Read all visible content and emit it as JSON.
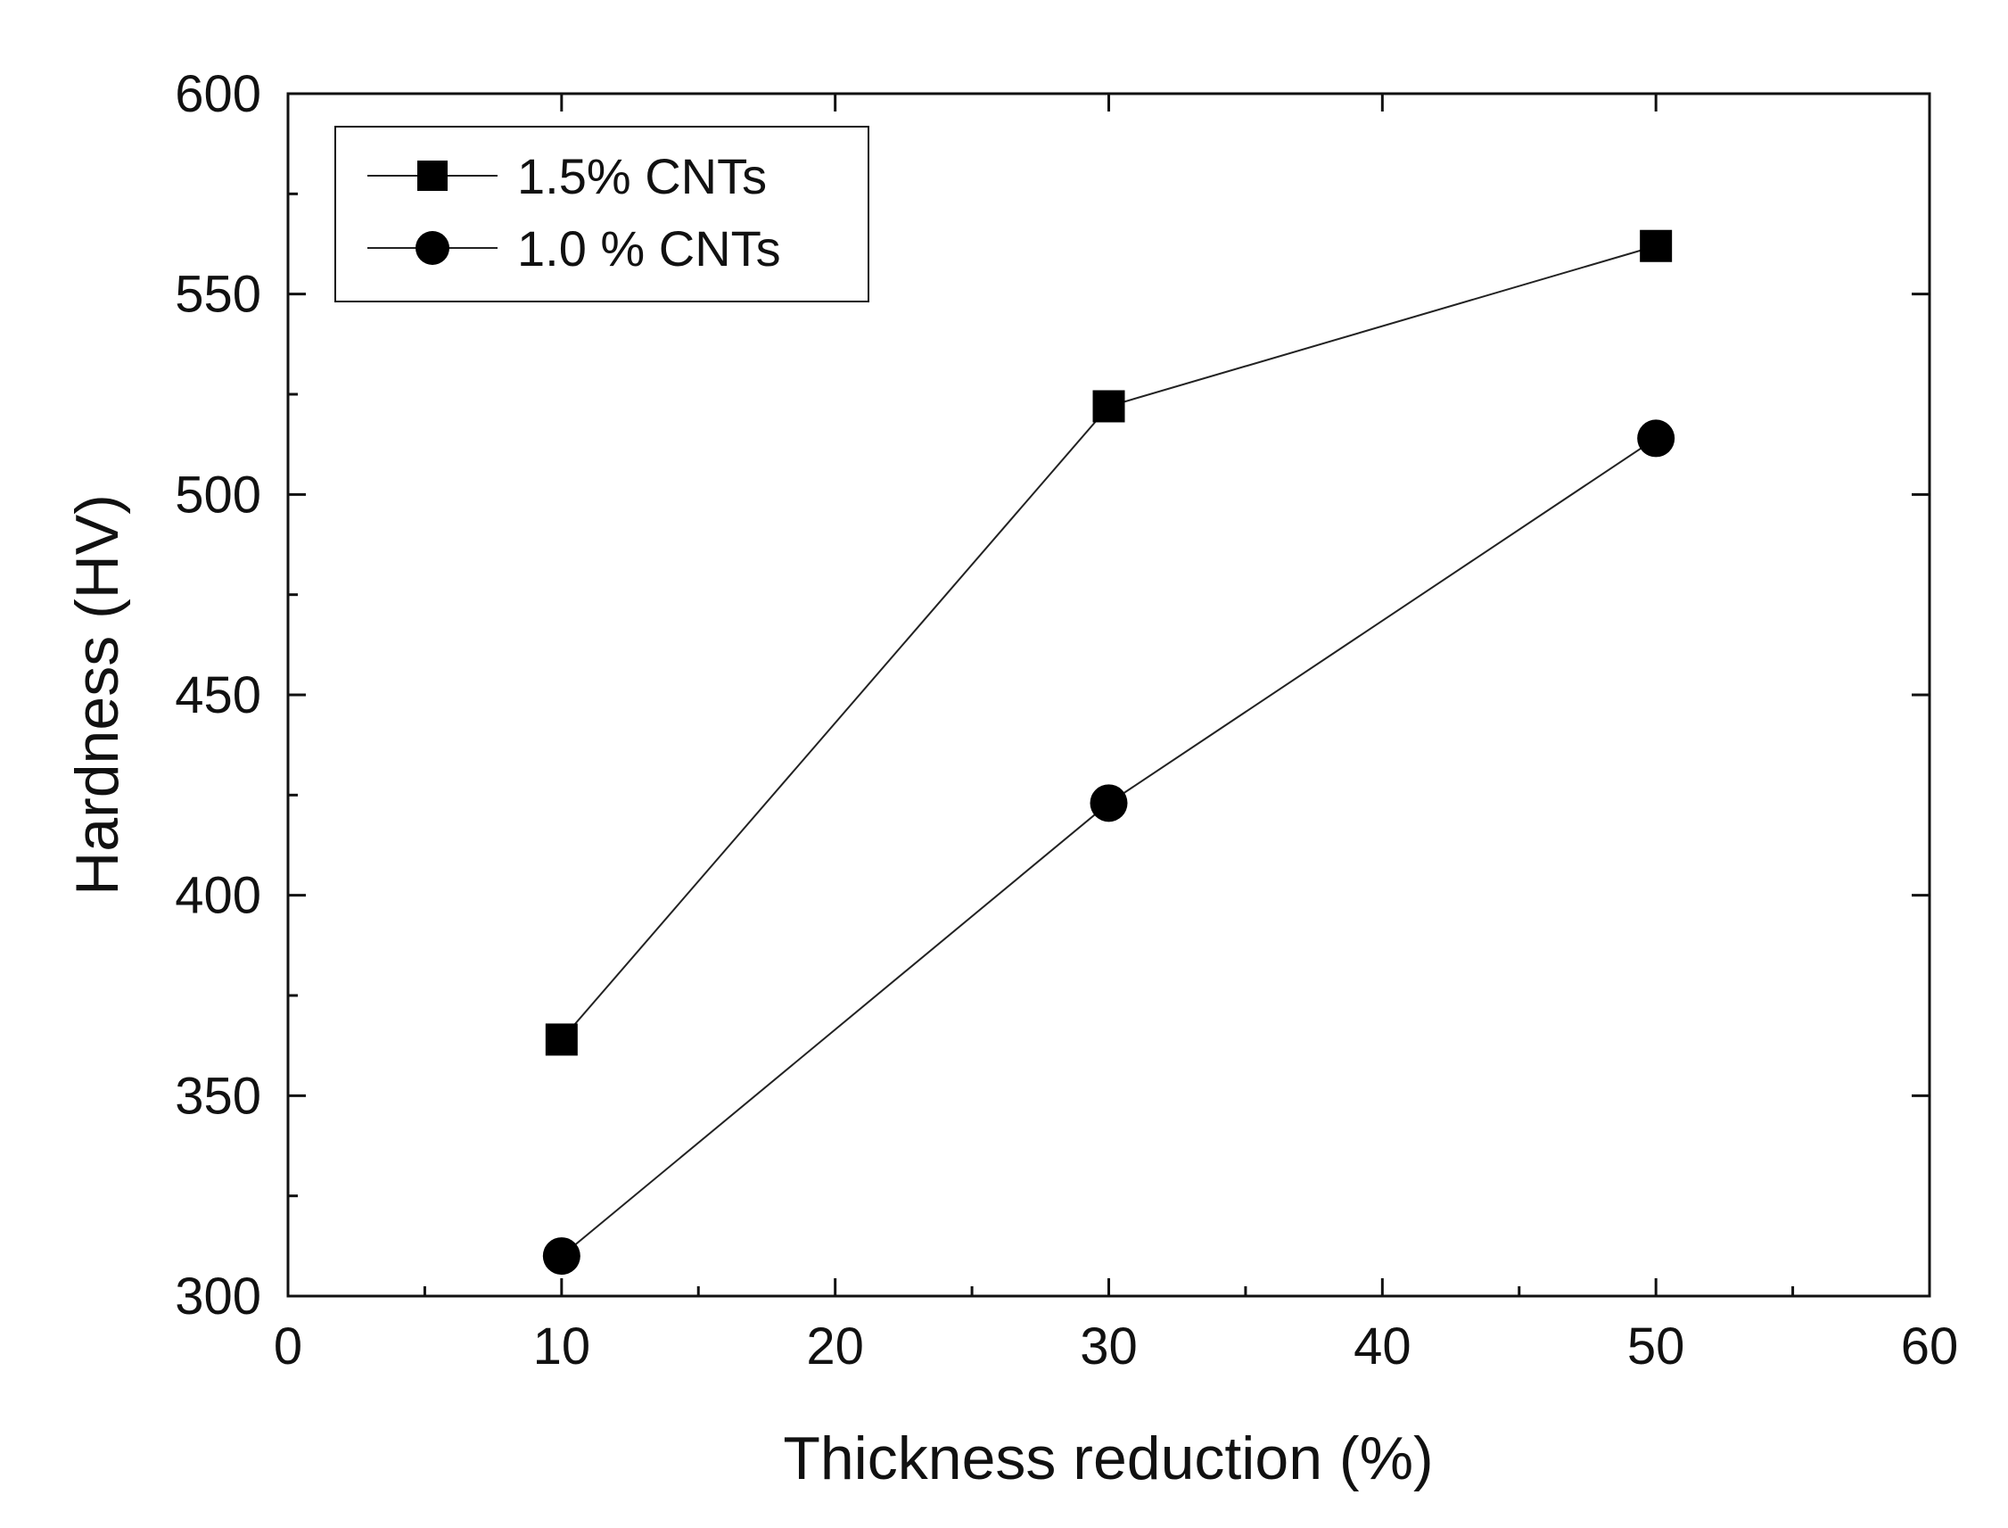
{
  "chart_data": {
    "type": "line",
    "title": "",
    "xlabel": "Thickness reduction (%)",
    "ylabel": "Hardness (HV)",
    "xlim": [
      0,
      60
    ],
    "ylim": [
      300,
      600
    ],
    "x_ticks": [
      0,
      10,
      20,
      30,
      40,
      50,
      60
    ],
    "x_tick_labels": [
      "0",
      "10",
      "20",
      "30",
      "40",
      "50",
      "60"
    ],
    "x_minor_ticks": [
      5,
      15,
      25,
      35,
      45,
      55
    ],
    "y_ticks": [
      300,
      350,
      400,
      450,
      500,
      550,
      600
    ],
    "y_tick_labels": [
      "300",
      "350",
      "400",
      "450",
      "500",
      "550",
      "600"
    ],
    "y_minor_ticks": [
      325,
      375,
      425,
      475,
      525,
      575
    ],
    "grid": false,
    "legend_position": "top-left",
    "series": [
      {
        "name": "1.5% CNTs",
        "marker": "square",
        "color": "#000000",
        "x": [
          10,
          30,
          50
        ],
        "y": [
          364,
          522,
          562
        ]
      },
      {
        "name": "1.0 % CNTs",
        "marker": "circle",
        "color": "#000000",
        "x": [
          10,
          30,
          50
        ],
        "y": [
          310,
          423,
          514
        ]
      }
    ]
  }
}
